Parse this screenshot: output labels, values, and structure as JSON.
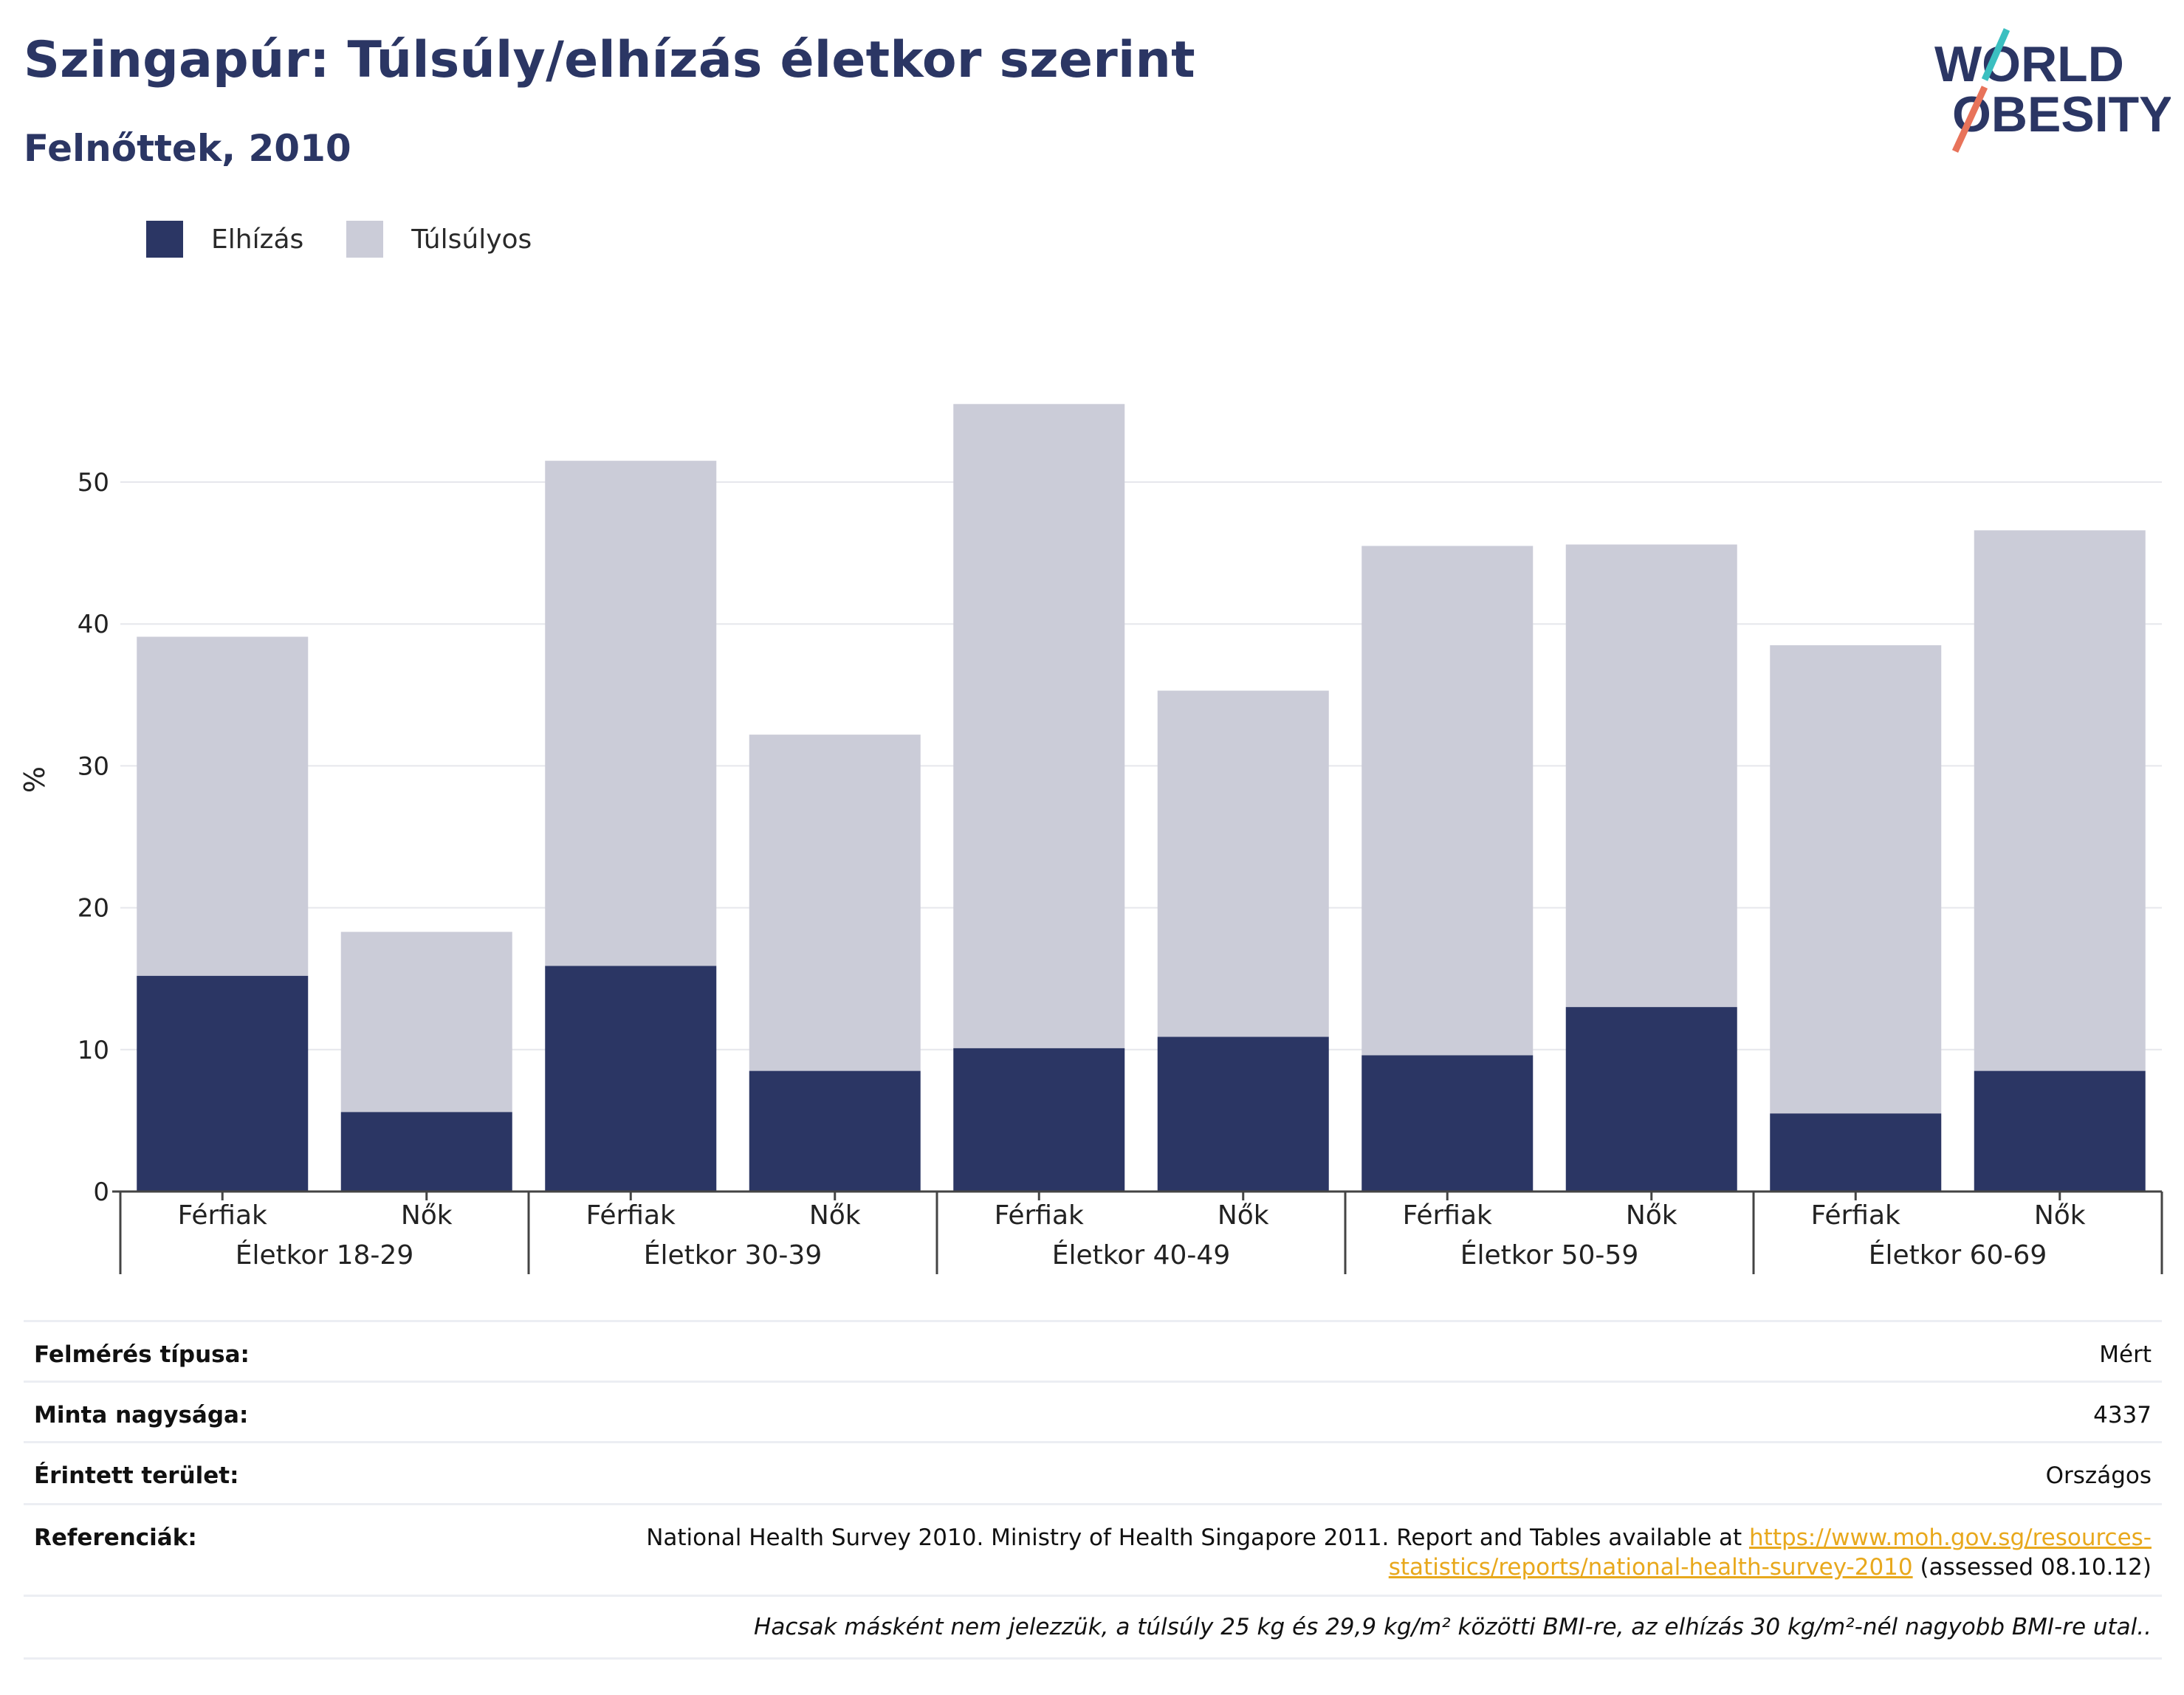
{
  "header": {
    "title": "Szingapúr: Túlsúly/elhízás életkor szerint",
    "subtitle": "Felnőttek, 2010"
  },
  "logo": {
    "line1": "WORLD",
    "line2": "OBESITY"
  },
  "colors": {
    "obesity": "#2b3664",
    "overweight": "#cbccd8",
    "accent_teal": "#3bbfc0",
    "accent_coral": "#e8735a",
    "link": "#e8a81c"
  },
  "chart_data": {
    "type": "bar",
    "stacked": true,
    "ylabel": "%",
    "ylim": [
      0,
      60
    ],
    "yticks": [
      0,
      10,
      20,
      30,
      40,
      50
    ],
    "grid": true,
    "legend_position": "top-left",
    "groups": [
      "Életkor 18-29",
      "Életkor 30-39",
      "Életkor 40-49",
      "Életkor 50-59",
      "Életkor 60-69"
    ],
    "sub_categories": [
      "Férfiak",
      "Nők"
    ],
    "series": [
      {
        "name": "Elhízás",
        "values": [
          15.2,
          5.6,
          15.9,
          8.5,
          10.1,
          10.9,
          9.6,
          13.0,
          5.5,
          8.5
        ]
      },
      {
        "name": "Túlsúlyos",
        "values": [
          23.9,
          12.7,
          35.6,
          23.7,
          45.4,
          24.4,
          35.9,
          32.6,
          33.0,
          38.1
        ]
      }
    ]
  },
  "info": {
    "rows": [
      {
        "label": "Felmérés típusa:",
        "value": "Mért"
      },
      {
        "label": "Minta nagysága:",
        "value": "4337"
      },
      {
        "label": "Érintett terület:",
        "value": "Országos"
      }
    ],
    "reference": {
      "label": "Referenciák:",
      "text": "National Health Survey 2010. Ministry of Health Singapore 2011. Report and Tables available at",
      "link": "https://www.moh.gov.sg/resources-statistics/reports/national-health-survey-2010",
      "suffix": "(assessed 08.10.12)"
    },
    "footnote": "Hacsak másként nem jelezzük, a túlsúly 25 kg és 29,9 kg/m² közötti BMI-re, az elhízás 30 kg/m²-nél nagyobb BMI-re utal.."
  }
}
